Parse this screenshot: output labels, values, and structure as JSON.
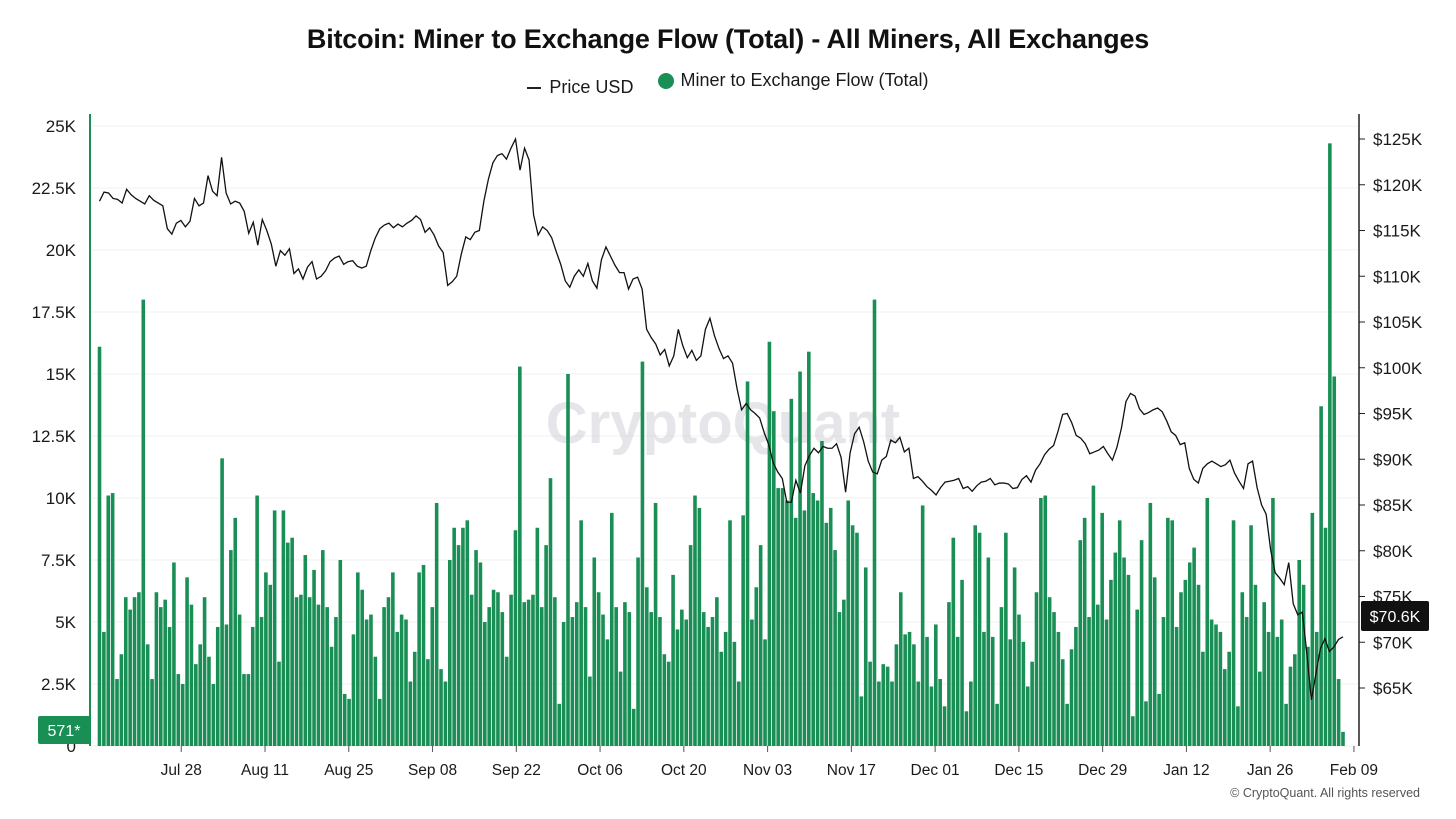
{
  "chart_data": {
    "type": "bar",
    "title": "Bitcoin: Miner to Exchange Flow (Total) - All Miners, All Exchanges",
    "legend": [
      {
        "label": "Price USD",
        "kind": "line",
        "color": "#111111"
      },
      {
        "label": "Miner to Exchange Flow (Total)",
        "kind": "bar",
        "color": "#1a8f55"
      }
    ],
    "x_tick_labels": [
      "Jul 28",
      "Aug 11",
      "Aug 25",
      "Sep 08",
      "Sep 22",
      "Oct 06",
      "Oct 20",
      "Nov 03",
      "Nov 17",
      "Dec 01",
      "Dec 15",
      "Dec 29",
      "Jan 12",
      "Jan 26",
      "Feb 09"
    ],
    "x_tick_day_index": [
      14,
      28,
      42,
      56,
      70,
      84,
      98,
      112,
      126,
      140,
      154,
      168,
      182,
      196,
      210
    ],
    "ylim_left": [
      0,
      25000
    ],
    "left_ticks": [
      0,
      2500,
      5000,
      7500,
      10000,
      12500,
      15000,
      17500,
      20000,
      22500,
      25000
    ],
    "left_tick_labels": [
      "0",
      "2.5K",
      "5K",
      "7.5K",
      "10K",
      "12.5K",
      "15K",
      "17.5K",
      "20K",
      "22.5K",
      "25K"
    ],
    "ylim_right": [
      60000,
      128000
    ],
    "right_ticks": [
      65000,
      70000,
      75000,
      80000,
      85000,
      90000,
      95000,
      100000,
      105000,
      110000,
      115000,
      120000,
      125000
    ],
    "right_tick_labels": [
      "$65K",
      "$70K",
      "$75K",
      "$80K",
      "$85K",
      "$90K",
      "$95K",
      "$100K",
      "$105K",
      "$110K",
      "$115K",
      "$120K",
      "$125K"
    ],
    "last_flow_label": "571*",
    "last_price_label": "$70.6K",
    "flow_values": [
      16100,
      4600,
      10100,
      10200,
      2700,
      3700,
      6000,
      5500,
      6000,
      6200,
      18000,
      4100,
      2700,
      6200,
      5600,
      5900,
      4800,
      7400,
      2900,
      2500,
      6800,
      5700,
      3300,
      4100,
      6000,
      3600,
      2500,
      4800,
      11600,
      4900,
      7900,
      9200,
      5300,
      2900,
      2900,
      4800,
      10100,
      5200,
      7000,
      6500,
      9500,
      3400,
      9500,
      8200,
      8400,
      6000,
      6100,
      7700,
      6000,
      7100,
      5700,
      7900,
      5600,
      4000,
      5200,
      7500,
      2100,
      1900,
      4500,
      7000,
      6300,
      5100,
      5300,
      3600,
      1900,
      5600,
      6000,
      7000,
      4600,
      5300,
      5100,
      2600,
      3800,
      7000,
      7300,
      3500,
      5600,
      9800,
      3100,
      2600,
      7500,
      8800,
      8100,
      8800,
      9100,
      6100,
      7900,
      7400,
      5000,
      5600,
      6300,
      6200,
      5400,
      3600,
      6100,
      8700,
      15300,
      5800,
      5900,
      6100,
      8800,
      5600,
      8100,
      10800,
      6000,
      1700,
      5000,
      15000,
      5200,
      5800,
      9100,
      5600,
      2800,
      7600,
      6200,
      5300,
      4300,
      9400,
      5600,
      3000,
      5800,
      5400,
      1500,
      7600,
      15500,
      6400,
      5400,
      9800,
      5200,
      3700,
      3400,
      6900,
      4700,
      5500,
      5100,
      8100,
      10100,
      9600,
      5400,
      4800,
      5200,
      6000,
      3800,
      4600,
      9100,
      4200,
      2600,
      9300,
      14700,
      5100,
      6400,
      8100,
      4300,
      16300,
      13500,
      10400,
      10400,
      9900,
      14000,
      9200,
      15100,
      9500,
      15900,
      10200,
      9900,
      12300,
      9000,
      9600,
      7900,
      5400,
      5900,
      9900,
      8900,
      8600,
      2000,
      7200,
      3400,
      18000,
      2600,
      3300,
      3200,
      2600,
      4100,
      6200,
      4500,
      4600,
      4100,
      2600,
      9700,
      4400,
      2400,
      4900,
      2700,
      1600,
      5800,
      8400,
      4400,
      6700,
      1400,
      2600,
      8900,
      8600,
      4600,
      7600,
      4400,
      1700,
      5600,
      8600,
      4300,
      7200,
      5300,
      4200,
      2400,
      3400,
      6200,
      10000,
      10100,
      6000,
      5400,
      4600,
      3500,
      1700,
      3900,
      4800,
      8300,
      9200,
      5200,
      10500,
      5700,
      9400,
      5100,
      6700,
      7800,
      9100,
      7600,
      6900,
      1200,
      5500,
      8300,
      1800,
      9800,
      6800,
      2100,
      5200,
      9200,
      9100,
      4800,
      6200,
      6700,
      7400,
      8000,
      6500,
      3800,
      10000,
      5100,
      4900,
      4600,
      3100,
      3800,
      9100,
      1600,
      6200,
      5200,
      8900,
      6500,
      3000,
      5800,
      4600,
      10000,
      4400,
      5100,
      1700,
      3200,
      3700,
      7500,
      6500,
      4000,
      9400,
      4600,
      13700,
      8800,
      24300,
      14900,
      2700,
      571
    ],
    "price_values": [
      118200,
      119200,
      119100,
      118500,
      118400,
      118000,
      119500,
      118900,
      118500,
      118200,
      117900,
      118800,
      118300,
      118000,
      117700,
      115200,
      114600,
      115800,
      116100,
      115400,
      116000,
      118500,
      117700,
      118000,
      121000,
      119300,
      118800,
      123000,
      119100,
      117900,
      118200,
      118000,
      117100,
      114700,
      115900,
      113400,
      116200,
      115000,
      113500,
      111100,
      112800,
      112300,
      113000,
      110300,
      110800,
      109700,
      111000,
      111600,
      109700,
      110000,
      110600,
      111600,
      112000,
      112200,
      111300,
      111600,
      111700,
      111100,
      110900,
      111100,
      112800,
      114200,
      115200,
      115600,
      115800,
      115300,
      115700,
      115400,
      115800,
      116100,
      116600,
      116200,
      114800,
      115300,
      114500,
      113300,
      112600,
      109000,
      109400,
      110000,
      112400,
      114300,
      114000,
      114800,
      115000,
      118200,
      120600,
      122400,
      123200,
      123400,
      122800,
      124000,
      125000,
      121600,
      124000,
      122700,
      116700,
      114500,
      115400,
      115000,
      114200,
      112700,
      111300,
      109500,
      108800,
      110000,
      110700,
      110000,
      111400,
      109500,
      108700,
      111800,
      113200,
      112200,
      111200,
      110400,
      110400,
      108600,
      109700,
      109900,
      108600,
      104200,
      103300,
      102600,
      101400,
      102000,
      100200,
      101300,
      104200,
      102400,
      101100,
      101900,
      100800,
      101300,
      104200,
      105400,
      103500,
      102100,
      101000,
      101300,
      100500,
      97700,
      95400,
      96100,
      95400,
      95000,
      94500,
      92900,
      91600,
      89600,
      88600,
      87900,
      85300,
      85300,
      87700,
      86300,
      89300,
      90400,
      91200,
      90700,
      91400,
      91200,
      91200,
      91700,
      90200,
      86400,
      90700,
      92800,
      93500,
      91900,
      89800,
      88600,
      88400,
      89900,
      90300,
      92100,
      91800,
      92400,
      90800,
      91200,
      87900,
      88100,
      87600,
      87000,
      86600,
      86100,
      86900,
      87500,
      87600,
      87700,
      87900,
      86800,
      87000,
      86500,
      87100,
      87500,
      87600,
      87900,
      87200,
      87400,
      87400,
      87300,
      86800,
      86900,
      87800,
      88200,
      87500,
      88800,
      89500,
      90500,
      91100,
      91500,
      93100,
      94900,
      95000,
      94000,
      92600,
      92300,
      91700,
      90600,
      90800,
      91000,
      91400,
      90600,
      89900,
      91300,
      93400,
      96300,
      97200,
      96900,
      95500,
      94900,
      95100,
      95400,
      95600,
      95200,
      94200,
      93000,
      92600,
      91600,
      91800,
      89000,
      87800,
      87400,
      89000,
      89500,
      89800,
      89500,
      89200,
      89400,
      89900,
      88500,
      87600,
      86800,
      89500,
      89800,
      86900,
      85000,
      84000,
      80100,
      77600,
      77000,
      76300,
      78700,
      74200,
      73000,
      73300,
      68800,
      63700,
      66500,
      69300,
      70400,
      69000,
      69500,
      70300,
      70600
    ]
  },
  "watermark": "CryptoQuant",
  "footer": "© CryptoQuant. All rights reserved",
  "colors": {
    "bar": "#1a8f55",
    "line": "#111111",
    "badge_left": "#1a8f55",
    "badge_right": "#111111"
  }
}
